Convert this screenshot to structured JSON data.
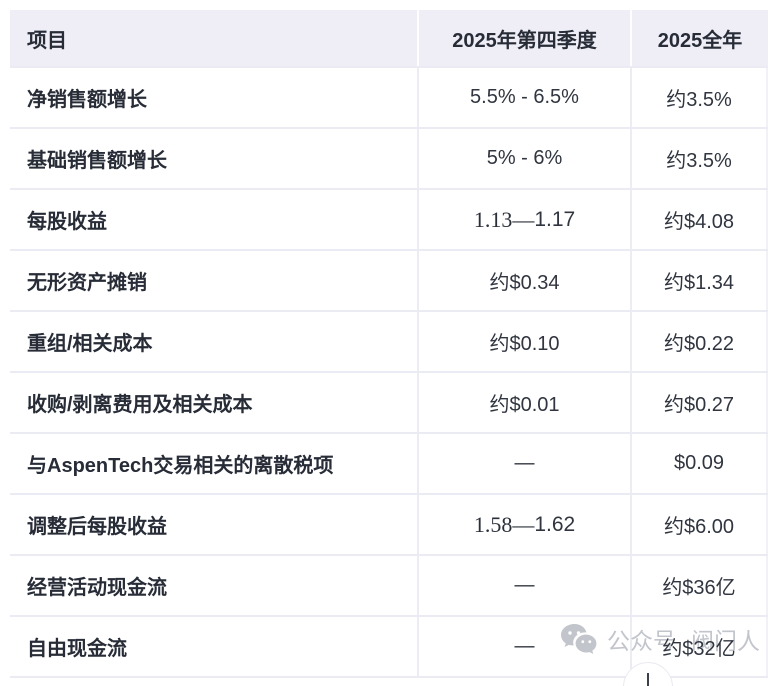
{
  "table": {
    "header": {
      "item": "项目",
      "q4": "2025年第四季度",
      "fy": "2025全年"
    },
    "rows": [
      {
        "label": "净销售额增长",
        "q4": "5.5% - 6.5%",
        "fy": "约3.5%"
      },
      {
        "label": "基础销售额增长",
        "q4": "5% - 6%",
        "fy": "约3.5%"
      },
      {
        "label": "每股收益",
        "q4": {
          "serif": "1.13—",
          "plain": "1.17"
        },
        "fy": "约$4.08"
      },
      {
        "label": "无形资产摊销",
        "q4": "约$0.34",
        "fy": "约$1.34"
      },
      {
        "label": "重组/相关成本",
        "q4": "约$0.10",
        "fy": "约$0.22"
      },
      {
        "label": "收购/剥离费用及相关成本",
        "q4": "约$0.01",
        "fy": "约$0.27"
      },
      {
        "label": "与AspenTech交易相关的离散税项",
        "q4": "—",
        "fy": "$0.09"
      },
      {
        "label": "调整后每股收益",
        "q4": {
          "serif": "1.58—",
          "plain": "1.62"
        },
        "fy": "约$6.00"
      },
      {
        "label": "经营活动现金流",
        "q4": "—",
        "fy": "约$36亿"
      },
      {
        "label": "自由现金流",
        "q4": "—",
        "fy": "约$32亿"
      }
    ]
  },
  "chart_data": {
    "type": "table",
    "title": "",
    "columns": [
      "项目",
      "2025年第四季度",
      "2025全年"
    ],
    "rows": [
      [
        "净销售额增长",
        "5.5% - 6.5%",
        "约3.5%"
      ],
      [
        "基础销售额增长",
        "5% - 6%",
        "约3.5%"
      ],
      [
        "每股收益",
        "1.13—1.17",
        "约$4.08"
      ],
      [
        "无形资产摊销",
        "约$0.34",
        "约$1.34"
      ],
      [
        "重组/相关成本",
        "约$0.10",
        "约$0.22"
      ],
      [
        "收购/剥离费用及相关成本",
        "约$0.01",
        "约$0.27"
      ],
      [
        "与AspenTech交易相关的离散税项",
        "—",
        "$0.09"
      ],
      [
        "调整后每股收益",
        "1.58—1.62",
        "约$6.00"
      ],
      [
        "经营活动现金流",
        "—",
        "约$36亿"
      ],
      [
        "自由现金流",
        "—",
        "约$32亿"
      ]
    ],
    "layout_hints": {
      "header_bg": "#efeef7",
      "grid_line_color": "#ebebf3",
      "value_columns_align": "center",
      "label_column_align": "left"
    }
  },
  "watermark": {
    "icon": "wechat-icon",
    "prefix": "公众号",
    "name": "阀门人"
  },
  "colors": {
    "header_bg": "#efeef7",
    "border": "#ebebf3",
    "label_text": "#272c37",
    "value_text": "#30353f",
    "watermark": "#c2c5cc"
  }
}
